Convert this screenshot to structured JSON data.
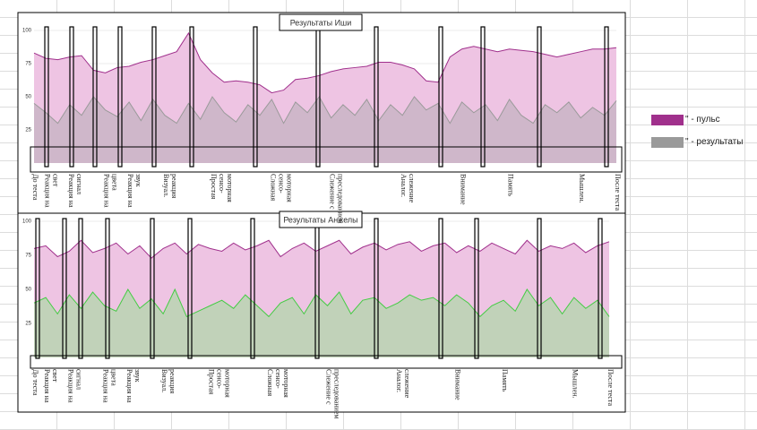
{
  "legend_series": 0,
  "chart_data": [
    {
      "type": "area",
      "title": "Результаты Иши",
      "categories": [
        "До теста",
        "Реакция на свет",
        null,
        "Реакция на сигнал",
        null,
        null,
        "Реакция на цвета",
        null,
        "Реакция на звук",
        null,
        null,
        "Визуал. реакция",
        null,
        null,
        null,
        "Простая сенсо-моторная",
        null,
        null,
        null,
        null,
        "Сложная сенсо-моторная",
        null,
        null,
        null,
        null,
        "Слежение с преследованием",
        null,
        null,
        null,
        null,
        null,
        "Аналог. слежение",
        null,
        null,
        null,
        null,
        "Внимание",
        null,
        null,
        null,
        "Память",
        null,
        null,
        null,
        null,
        null,
        "Мышлен.",
        null,
        null,
        "После теста"
      ],
      "series": [
        {
          "name": "\" - пульс",
          "color": "#a0308c",
          "fill": "#eec4e3",
          "values": [
            83,
            79,
            78,
            80,
            81,
            70,
            68,
            72,
            73,
            76,
            78,
            81,
            84,
            98,
            78,
            68,
            61,
            62,
            61,
            59,
            53,
            55,
            63,
            64,
            66,
            69,
            71,
            72,
            73,
            76,
            76,
            74,
            71,
            62,
            61,
            80,
            86,
            88,
            86,
            84,
            86,
            85,
            84,
            82,
            80,
            82,
            84,
            86,
            86,
            87
          ]
        },
        {
          "name": "\" - результаты",
          "color": "#9a9a9a",
          "fill": "#c9b5c5",
          "values": [
            45,
            38,
            30,
            44,
            36,
            50,
            40,
            35,
            46,
            32,
            48,
            36,
            30,
            45,
            33,
            50,
            38,
            31,
            44,
            36,
            48,
            30,
            46,
            38,
            50,
            34,
            44,
            36,
            48,
            32,
            44,
            36,
            50,
            40,
            45,
            30,
            46,
            38,
            44,
            32,
            48,
            36,
            30,
            44,
            38,
            46,
            34,
            42,
            36,
            47
          ]
        }
      ],
      "ylim": [
        0,
        100
      ],
      "yticks": [
        25,
        50,
        75,
        100
      ],
      "grid": true
    },
    {
      "type": "area",
      "title": "Результаты Анжелы",
      "categories": [
        "До теста",
        "Реакция на свет",
        null,
        "Реакция на сигнал",
        null,
        null,
        "Реакция на цвета",
        null,
        "Реакция на звук",
        null,
        null,
        "Визуал. реакция",
        null,
        null,
        null,
        "Простая сенсо-моторная",
        null,
        null,
        null,
        null,
        "Сложная сенсо-моторная",
        null,
        null,
        null,
        null,
        "Слежение с преследованием",
        null,
        null,
        null,
        null,
        null,
        "Аналог. слежение",
        null,
        null,
        null,
        null,
        "Внимание",
        null,
        null,
        null,
        "Память",
        null,
        null,
        null,
        null,
        null,
        "Мышлен.",
        null,
        null,
        "После теста"
      ],
      "series": [
        {
          "color": "#a0308c",
          "fill": "#eec4e3",
          "values": [
            80,
            82,
            74,
            78,
            86,
            77,
            80,
            84,
            76,
            82,
            73,
            80,
            84,
            76,
            83,
            80,
            78,
            84,
            79,
            82,
            86,
            74,
            80,
            84,
            78,
            82,
            86,
            76,
            81,
            84,
            79,
            83,
            85,
            78,
            82,
            84,
            77,
            82,
            78,
            84,
            80,
            76,
            86,
            78,
            82,
            80,
            84,
            77,
            82,
            85
          ]
        },
        {
          "color": "#44cc44",
          "fill": "#b9d5b1",
          "values": [
            40,
            44,
            32,
            46,
            36,
            48,
            38,
            34,
            50,
            36,
            43,
            32,
            50,
            30,
            34,
            38,
            42,
            36,
            46,
            38,
            30,
            40,
            44,
            32,
            46,
            38,
            48,
            32,
            42,
            44,
            36,
            40,
            46,
            42,
            44,
            38,
            46,
            40,
            30,
            38,
            42,
            34,
            50,
            38,
            44,
            32,
            44,
            36,
            42,
            30
          ]
        }
      ],
      "ylim": [
        0,
        100
      ],
      "yticks": [
        25,
        50,
        75,
        100
      ],
      "grid": true
    }
  ]
}
